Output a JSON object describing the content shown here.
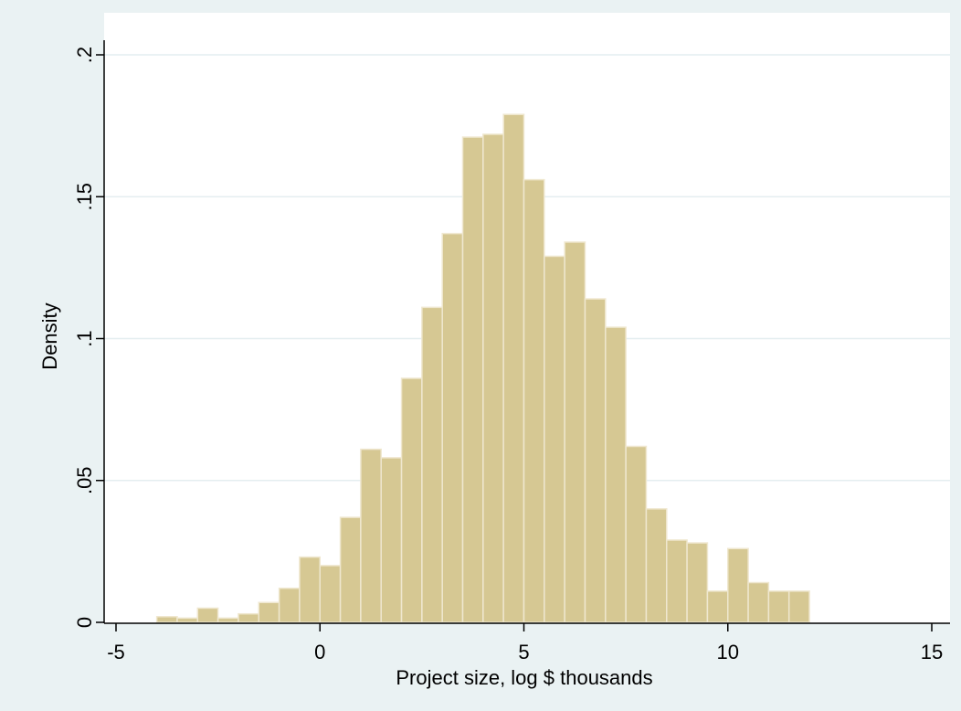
{
  "chart_data": {
    "type": "bar",
    "xlabel": "Project size, log $ thousands",
    "ylabel": "Density",
    "xlim": [
      -5,
      15
    ],
    "ylim": [
      0,
      0.2
    ],
    "x_ticks": [
      {
        "value": -5,
        "label": "-5"
      },
      {
        "value": 0,
        "label": "0"
      },
      {
        "value": 5,
        "label": "5"
      },
      {
        "value": 10,
        "label": "10"
      },
      {
        "value": 15,
        "label": "15"
      }
    ],
    "y_ticks": [
      {
        "value": 0,
        "label": "0"
      },
      {
        "value": 0.05,
        "label": ".05"
      },
      {
        "value": 0.1,
        "label": ".1"
      },
      {
        "value": 0.15,
        "label": ".15"
      },
      {
        "value": 0.2,
        "label": ".2"
      }
    ],
    "grid": "horizontal",
    "bin_width": 0.5,
    "bin_edges_start": -4.0,
    "values": [
      0.002,
      0.0015,
      0.005,
      0.0015,
      0.003,
      0.007,
      0.012,
      0.023,
      0.02,
      0.037,
      0.061,
      0.058,
      0.086,
      0.111,
      0.137,
      0.171,
      0.172,
      0.179,
      0.156,
      0.129,
      0.134,
      0.114,
      0.104,
      0.062,
      0.04,
      0.029,
      0.028,
      0.011,
      0.026,
      0.014,
      0.011,
      0.011
    ],
    "colors": {
      "outer_background": "#eaf2f3",
      "plot_background": "#ffffff",
      "bar_fill": "#d6c893",
      "bar_edge": "#efe7cf",
      "grid": "#e4eef0",
      "axis": "#000000"
    }
  }
}
